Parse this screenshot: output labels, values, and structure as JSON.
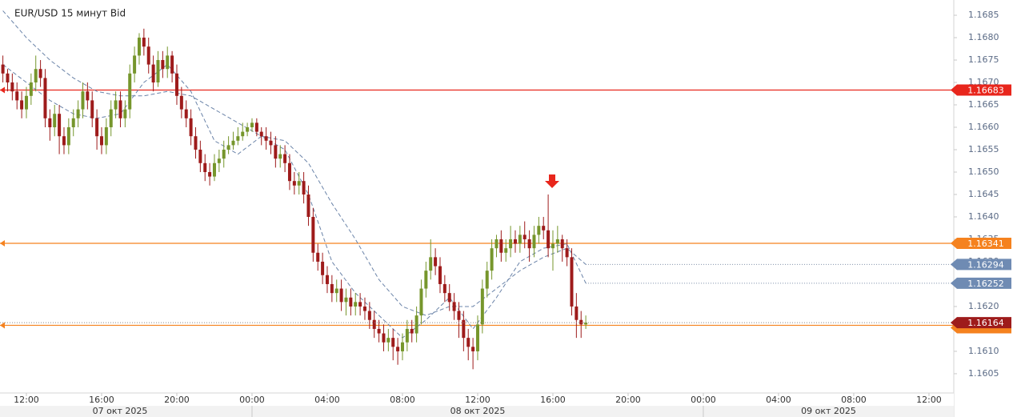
{
  "chart_data": {
    "type": "candlestick",
    "title": "EUR/USD  15 минут Bid",
    "up_color": "#76962c",
    "down_color": "#9e1b1b",
    "ylim": [
      1.16007,
      1.16884
    ],
    "yticks": [
      {
        "value": 1.1605,
        "label": "1.1605"
      },
      {
        "value": 1.161,
        "label": "1.1610"
      },
      {
        "value": 1.1615,
        "label": "1.1615"
      },
      {
        "value": 1.162,
        "label": "1.1620"
      },
      {
        "value": 1.1625,
        "label": "1.1625"
      },
      {
        "value": 1.163,
        "label": "1.1630"
      },
      {
        "value": 1.1635,
        "label": "1.1635"
      },
      {
        "value": 1.164,
        "label": "1.1640"
      },
      {
        "value": 1.1645,
        "label": "1.1645"
      },
      {
        "value": 1.165,
        "label": "1.1650"
      },
      {
        "value": 1.1655,
        "label": "1.1655"
      },
      {
        "value": 1.166,
        "label": "1.1660"
      },
      {
        "value": 1.1665,
        "label": "1.1665"
      },
      {
        "value": 1.167,
        "label": "1.1670"
      },
      {
        "value": 1.1675,
        "label": "1.1675"
      },
      {
        "value": 1.168,
        "label": "1.1680"
      },
      {
        "value": 1.1685,
        "label": "1.1685"
      }
    ],
    "time_labels": [
      "12:00",
      "16:00",
      "20:00",
      "00:00",
      "04:00",
      "08:00",
      "12:00",
      "16:00",
      "20:00",
      "00:00",
      "04:00",
      "08:00",
      "12:00"
    ],
    "date_labels": [
      "07 окт 2025",
      "08 окт 2025",
      "09 окт 2025"
    ],
    "series": [
      {
        "values": [
          [
            1.1674,
            1.1676,
            1.167,
            1.1672
          ],
          [
            1.1672,
            1.1673,
            1.1668,
            1.167
          ],
          [
            1.167,
            1.1672,
            1.1666,
            1.1668
          ],
          [
            1.1668,
            1.167,
            1.1664,
            1.1666
          ],
          [
            1.1666,
            1.1668,
            1.1662,
            1.1664
          ],
          [
            1.1664,
            1.1669,
            1.1662,
            1.1667
          ],
          [
            1.1667,
            1.1672,
            1.1665,
            1.167
          ],
          [
            1.167,
            1.1676,
            1.1668,
            1.1673
          ],
          [
            1.1673,
            1.1675,
            1.1669,
            1.1671
          ],
          [
            1.1671,
            1.1673,
            1.166,
            1.1662
          ],
          [
            1.1662,
            1.1664,
            1.1657,
            1.166
          ],
          [
            1.166,
            1.1665,
            1.1658,
            1.1663
          ],
          [
            1.1663,
            1.1665,
            1.1654,
            1.1658
          ],
          [
            1.1658,
            1.166,
            1.1654,
            1.1656
          ],
          [
            1.1656,
            1.1662,
            1.1654,
            1.166
          ],
          [
            1.166,
            1.1664,
            1.1658,
            1.1662
          ],
          [
            1.1662,
            1.1666,
            1.166,
            1.1664
          ],
          [
            1.1664,
            1.167,
            1.1662,
            1.1668
          ],
          [
            1.1668,
            1.167,
            1.1664,
            1.1666
          ],
          [
            1.1666,
            1.1668,
            1.166,
            1.1662
          ],
          [
            1.1662,
            1.1664,
            1.1655,
            1.1658
          ],
          [
            1.1658,
            1.166,
            1.1654,
            1.1656
          ],
          [
            1.1656,
            1.1662,
            1.1654,
            1.166
          ],
          [
            1.166,
            1.1666,
            1.1658,
            1.1664
          ],
          [
            1.1664,
            1.1668,
            1.1662,
            1.1666
          ],
          [
            1.1666,
            1.1668,
            1.166,
            1.1662
          ],
          [
            1.1662,
            1.1666,
            1.166,
            1.1664
          ],
          [
            1.1664,
            1.1674,
            1.1662,
            1.1672
          ],
          [
            1.1672,
            1.1678,
            1.167,
            1.1676
          ],
          [
            1.1676,
            1.1681,
            1.1674,
            1.168
          ],
          [
            1.168,
            1.1682,
            1.1676,
            1.1678
          ],
          [
            1.1678,
            1.168,
            1.1672,
            1.1674
          ],
          [
            1.1674,
            1.1676,
            1.1668,
            1.167
          ],
          [
            1.167,
            1.1677,
            1.1669,
            1.1675
          ],
          [
            1.1675,
            1.1677,
            1.1671,
            1.1673
          ],
          [
            1.1673,
            1.1678,
            1.1671,
            1.1676
          ],
          [
            1.1676,
            1.1677,
            1.167,
            1.1672
          ],
          [
            1.1672,
            1.1674,
            1.1665,
            1.1667
          ],
          [
            1.1667,
            1.1669,
            1.1662,
            1.1664
          ],
          [
            1.1664,
            1.1666,
            1.166,
            1.1662
          ],
          [
            1.1662,
            1.1664,
            1.1656,
            1.1658
          ],
          [
            1.1658,
            1.166,
            1.1653,
            1.1655
          ],
          [
            1.1655,
            1.1657,
            1.165,
            1.1652
          ],
          [
            1.1652,
            1.1654,
            1.1648,
            1.165
          ],
          [
            1.165,
            1.1652,
            1.1647,
            1.1649
          ],
          [
            1.1649,
            1.1654,
            1.1648,
            1.1652
          ],
          [
            1.1652,
            1.1655,
            1.165,
            1.1653
          ],
          [
            1.1653,
            1.1657,
            1.1651,
            1.1655
          ],
          [
            1.1655,
            1.1658,
            1.1654,
            1.1656
          ],
          [
            1.1656,
            1.1659,
            1.1655,
            1.1657
          ],
          [
            1.1657,
            1.166,
            1.1656,
            1.1658
          ],
          [
            1.1658,
            1.1661,
            1.1657,
            1.1659
          ],
          [
            1.1659,
            1.1661,
            1.1658,
            1.166
          ],
          [
            1.166,
            1.1662,
            1.1659,
            1.1661
          ],
          [
            1.1661,
            1.1662,
            1.1658,
            1.1659
          ],
          [
            1.1659,
            1.166,
            1.1656,
            1.1658
          ],
          [
            1.1658,
            1.166,
            1.1655,
            1.1657
          ],
          [
            1.1657,
            1.1659,
            1.1654,
            1.1656
          ],
          [
            1.1656,
            1.1658,
            1.1651,
            1.1653
          ],
          [
            1.1653,
            1.1656,
            1.1651,
            1.1654
          ],
          [
            1.1654,
            1.1656,
            1.165,
            1.1652
          ],
          [
            1.1652,
            1.1654,
            1.1646,
            1.1648
          ],
          [
            1.1648,
            1.165,
            1.1645,
            1.1647
          ],
          [
            1.1647,
            1.165,
            1.1645,
            1.1648
          ],
          [
            1.1648,
            1.165,
            1.1643,
            1.1645
          ],
          [
            1.1645,
            1.1647,
            1.1638,
            1.164
          ],
          [
            1.164,
            1.1642,
            1.163,
            1.1632
          ],
          [
            1.1632,
            1.1634,
            1.1628,
            1.163
          ],
          [
            1.163,
            1.1632,
            1.1625,
            1.1627
          ],
          [
            1.1627,
            1.1629,
            1.1623,
            1.1625
          ],
          [
            1.1625,
            1.1627,
            1.1621,
            1.1623
          ],
          [
            1.1623,
            1.1626,
            1.1621,
            1.1624
          ],
          [
            1.1624,
            1.1626,
            1.1619,
            1.1621
          ],
          [
            1.1621,
            1.1624,
            1.1618,
            1.1622
          ],
          [
            1.1622,
            1.1624,
            1.1618,
            1.162
          ],
          [
            1.162,
            1.1623,
            1.1618,
            1.1621
          ],
          [
            1.1621,
            1.1623,
            1.1618,
            1.162
          ],
          [
            1.162,
            1.1622,
            1.1617,
            1.1619
          ],
          [
            1.1619,
            1.1621,
            1.1615,
            1.1617
          ],
          [
            1.1617,
            1.1619,
            1.1613,
            1.1615
          ],
          [
            1.1615,
            1.1617,
            1.1612,
            1.1614
          ],
          [
            1.1614,
            1.1616,
            1.161,
            1.1612
          ],
          [
            1.1612,
            1.1615,
            1.161,
            1.1613
          ],
          [
            1.1613,
            1.1615,
            1.1608,
            1.1611
          ],
          [
            1.1611,
            1.1613,
            1.1607,
            1.161
          ],
          [
            1.161,
            1.1614,
            1.1608,
            1.1612
          ],
          [
            1.1612,
            1.1617,
            1.161,
            1.1615
          ],
          [
            1.1615,
            1.1617,
            1.1612,
            1.1614
          ],
          [
            1.1614,
            1.162,
            1.1612,
            1.1618
          ],
          [
            1.1618,
            1.1626,
            1.1616,
            1.1624
          ],
          [
            1.1624,
            1.163,
            1.1622,
            1.1628
          ],
          [
            1.1628,
            1.1635,
            1.1626,
            1.1631
          ],
          [
            1.1631,
            1.1633,
            1.1627,
            1.1629
          ],
          [
            1.1629,
            1.1631,
            1.1623,
            1.1625
          ],
          [
            1.1625,
            1.1627,
            1.1621,
            1.1623
          ],
          [
            1.1623,
            1.1625,
            1.1619,
            1.1621
          ],
          [
            1.1621,
            1.1623,
            1.1617,
            1.1619
          ],
          [
            1.1619,
            1.1621,
            1.1613,
            1.1617
          ],
          [
            1.1617,
            1.1619,
            1.161,
            1.1613
          ],
          [
            1.1613,
            1.1615,
            1.1608,
            1.1611
          ],
          [
            1.1611,
            1.1613,
            1.1606,
            1.161
          ],
          [
            1.161,
            1.1618,
            1.1608,
            1.1616
          ],
          [
            1.1616,
            1.1626,
            1.1614,
            1.1624
          ],
          [
            1.1624,
            1.163,
            1.1622,
            1.1628
          ],
          [
            1.1628,
            1.1635,
            1.1626,
            1.1633
          ],
          [
            1.1633,
            1.1636,
            1.1631,
            1.1635
          ],
          [
            1.1635,
            1.1637,
            1.163,
            1.1632
          ],
          [
            1.1632,
            1.1635,
            1.163,
            1.1633
          ],
          [
            1.1633,
            1.1638,
            1.1631,
            1.1635
          ],
          [
            1.1635,
            1.1637,
            1.1632,
            1.1634
          ],
          [
            1.1634,
            1.1638,
            1.1632,
            1.1636
          ],
          [
            1.1636,
            1.1639,
            1.1633,
            1.1635
          ],
          [
            1.1635,
            1.1637,
            1.163,
            1.1633
          ],
          [
            1.1633,
            1.1638,
            1.1631,
            1.1636
          ],
          [
            1.1636,
            1.164,
            1.1634,
            1.1638
          ],
          [
            1.1638,
            1.164,
            1.1635,
            1.1637
          ],
          [
            1.1637,
            1.1645,
            1.1631,
            1.1633
          ],
          [
            1.1633,
            1.1637,
            1.1628,
            1.1634
          ],
          [
            1.1634,
            1.1638,
            1.1632,
            1.1635
          ],
          [
            1.1635,
            1.1636,
            1.163,
            1.1633
          ],
          [
            1.1633,
            1.1635,
            1.1629,
            1.1631
          ],
          [
            1.1631,
            1.1633,
            1.1618,
            1.162
          ],
          [
            1.162,
            1.1623,
            1.1613,
            1.1617
          ],
          [
            1.1617,
            1.1619,
            1.1613,
            1.1616
          ],
          [
            1.1616,
            1.1618,
            1.1615,
            1.16164
          ]
        ]
      }
    ],
    "moving_averages": [
      {
        "color": "#6a83a8",
        "tag_color": "#6f8bb3",
        "x": [
          0,
          5,
          10,
          15,
          20,
          25,
          30,
          35,
          40,
          45,
          50,
          55,
          60,
          65,
          70,
          75,
          80,
          85,
          90,
          95,
          100,
          105,
          110,
          115,
          120,
          124
        ],
        "values": [
          1.1686,
          1.168,
          1.1675,
          1.1671,
          1.1668,
          1.1667,
          1.1667,
          1.1668,
          1.1667,
          1.1664,
          1.1661,
          1.1658,
          1.1657,
          1.1652,
          1.1643,
          1.1635,
          1.1626,
          1.162,
          1.1618,
          1.162,
          1.162,
          1.1624,
          1.1628,
          1.1631,
          1.1633,
          1.16294
        ]
      },
      {
        "color": "#6a83a8",
        "tag_color": "#6f8bb3",
        "x": [
          0,
          5,
          10,
          15,
          20,
          25,
          30,
          35,
          40,
          45,
          50,
          55,
          60,
          65,
          70,
          75,
          80,
          85,
          90,
          95,
          100,
          105,
          110,
          115,
          120,
          124
        ],
        "values": [
          1.1674,
          1.167,
          1.1666,
          1.1663,
          1.1662,
          1.1663,
          1.167,
          1.1674,
          1.1668,
          1.1657,
          1.1654,
          1.1658,
          1.1655,
          1.1645,
          1.163,
          1.1623,
          1.1618,
          1.1613,
          1.1617,
          1.1622,
          1.1615,
          1.1622,
          1.163,
          1.1633,
          1.1634,
          1.16252
        ]
      }
    ],
    "levels": [
      {
        "value": 1.16683,
        "color": "#e8261c",
        "tag": true
      },
      {
        "value": 1.16341,
        "color": "#f5821f",
        "tag": true
      },
      {
        "value": 1.16158,
        "color": "#f5821f",
        "tag": false
      }
    ],
    "close_tag_color": "#9e1b1b"
  }
}
